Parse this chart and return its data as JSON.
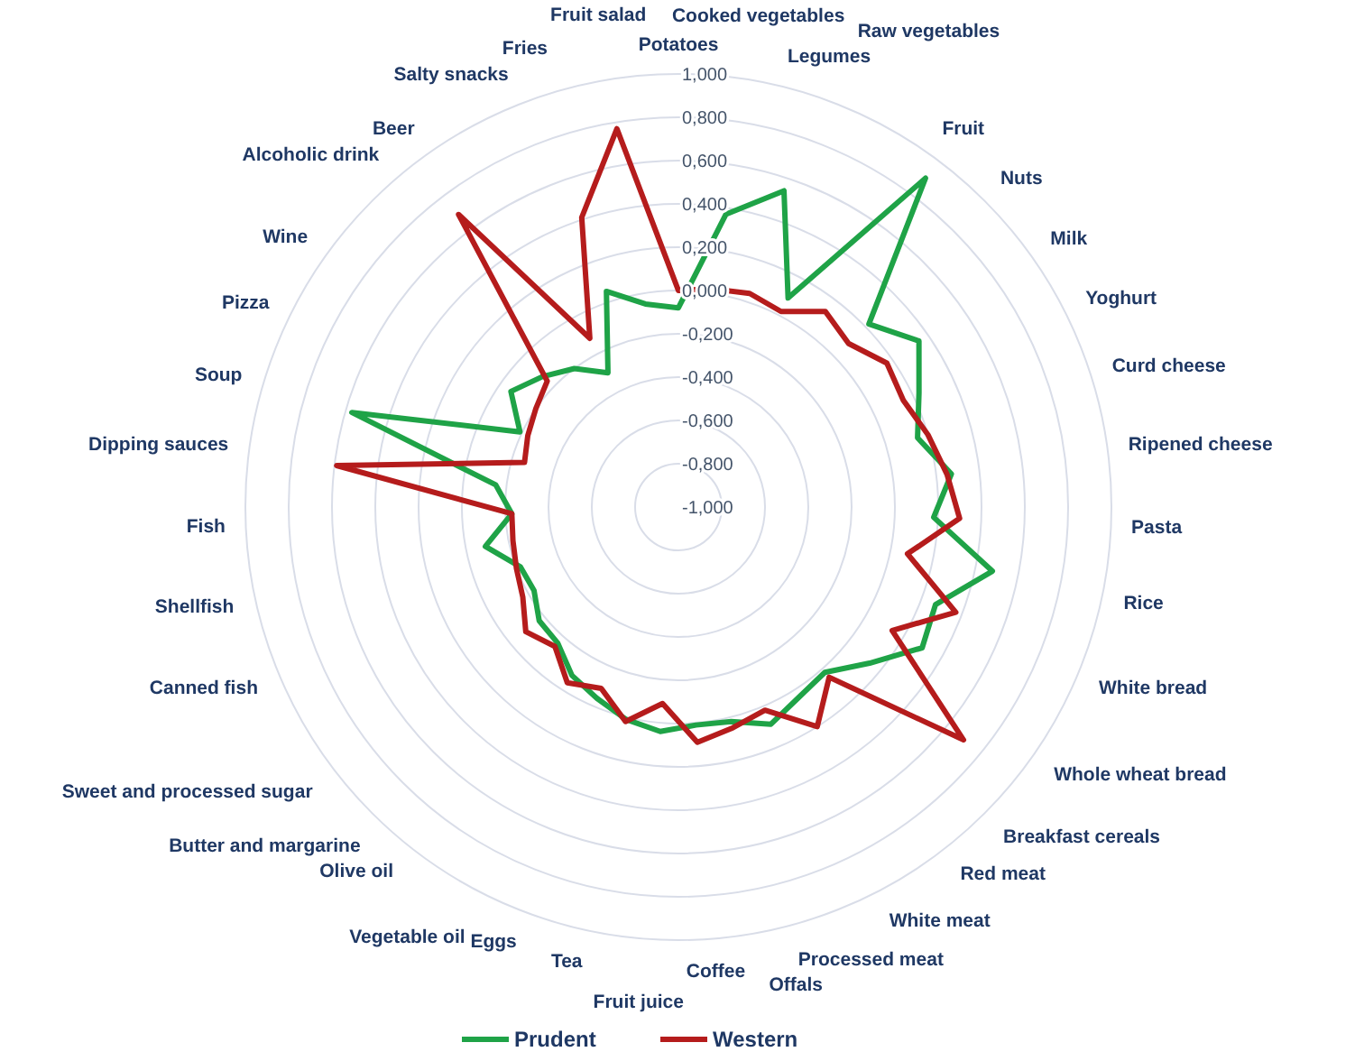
{
  "chart_data": {
    "type": "radar",
    "categories": [
      "Potatoes",
      "Cooked vegetables",
      "Legumes",
      "Raw vegetables",
      "Fruit",
      "Nuts",
      "Milk",
      "Yoghurt",
      "Curd cheese",
      "Ripened cheese",
      "Pasta",
      "Rice",
      "White bread",
      "Whole wheat bread",
      "Breakfast cereals",
      "Red meat",
      "White meat",
      "Processed meat",
      "Offals",
      "Coffee",
      "Fruit juice",
      "Tea",
      "Eggs",
      "Vegetable oil",
      "Olive oil",
      "Butter and margarine",
      "Sweet and processed sugar",
      "Canned fish",
      "Shellfish",
      "Fish",
      "Dipping sauces",
      "Soup",
      "Pizza",
      "Wine",
      "Alcoholic drink",
      "Beer",
      "Salty snacks",
      "Fries",
      "Fruit salad"
    ],
    "series": [
      {
        "name": "Prudent",
        "color": "#1fa347",
        "values": [
          -0.08,
          0.37,
          0.54,
          0.09,
          0.9,
          0.22,
          0.35,
          0.23,
          0.15,
          0.27,
          0.18,
          0.48,
          0.27,
          0.3,
          0.14,
          0.02,
          0.04,
          0.09,
          0.02,
          0.01,
          0.04,
          0.01,
          -0.04,
          -0.08,
          -0.16,
          -0.17,
          -0.23,
          -0.22,
          -0.09,
          -0.23,
          -0.15,
          0.57,
          -0.19,
          -0.06,
          -0.13,
          -0.2,
          -0.3,
          0.05,
          -0.05
        ]
      },
      {
        "name": "Western",
        "color": "#b51c1c",
        "values": [
          0,
          0.02,
          0.04,
          0.02,
          0.13,
          0.09,
          0.17,
          0.15,
          0.2,
          0.25,
          0.3,
          0.08,
          0.37,
          0.14,
          0.7,
          0.05,
          0.2,
          0.02,
          0.05,
          0.09,
          -0.09,
          0.02,
          -0.09,
          -0.04,
          -0.14,
          -0.09,
          -0.17,
          -0.2,
          -0.22,
          -0.23,
          0.59,
          -0.26,
          -0.23,
          -0.2,
          -0.16,
          0.69,
          -0.12,
          0.41,
          0.77
        ]
      }
    ],
    "ylim": [
      -1,
      1
    ],
    "yticks": [
      {
        "value": -1,
        "label": "-1,000"
      },
      {
        "value": -0.8,
        "label": "-0,800"
      },
      {
        "value": -0.6,
        "label": "-0,600"
      },
      {
        "value": -0.4,
        "label": "-0,400"
      },
      {
        "value": -0.2,
        "label": "-0,200"
      },
      {
        "value": 0,
        "label": "0,000"
      },
      {
        "value": 0.2,
        "label": "0,200"
      },
      {
        "value": 0.4,
        "label": "0,400"
      },
      {
        "value": 0.6,
        "label": "0,600"
      },
      {
        "value": 0.8,
        "label": "0,800"
      },
      {
        "value": 1,
        "label": "1,000"
      }
    ],
    "grid": true,
    "legend": "bottom",
    "marker": "none"
  }
}
